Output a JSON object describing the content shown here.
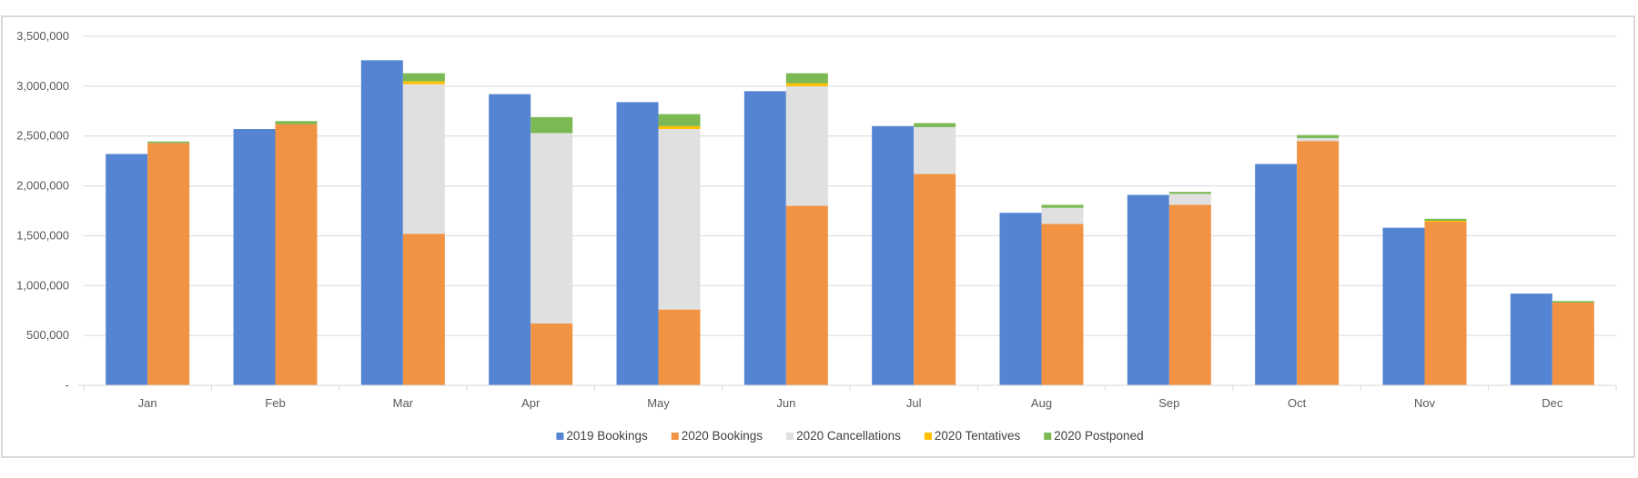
{
  "chart_data": {
    "type": "bar",
    "categories": [
      "Jan",
      "Feb",
      "Mar",
      "Apr",
      "May",
      "Jun",
      "Jul",
      "Aug",
      "Sep",
      "Oct",
      "Nov",
      "Dec"
    ],
    "y_ticks": [
      "-",
      "500,000",
      "1,000,000",
      "1,500,000",
      "2,000,000",
      "2,500,000",
      "3,000,000",
      "3,500,000"
    ],
    "ylim": [
      0,
      3500000
    ],
    "grid": true,
    "legend_position": "bottom",
    "series": [
      {
        "name": "2019 Bookings",
        "color": "#5585d2",
        "stack": "2019",
        "values": [
          2320000,
          2570000,
          3260000,
          2920000,
          2840000,
          2950000,
          2600000,
          1730000,
          1910000,
          2220000,
          1580000,
          920000
        ]
      },
      {
        "name": "2020 Bookings",
        "color": "#f19343",
        "stack": "2020",
        "values": [
          2430000,
          2620000,
          1520000,
          620000,
          760000,
          1800000,
          2120000,
          1620000,
          1810000,
          2450000,
          1640000,
          830000
        ]
      },
      {
        "name": "2020 Cancellations",
        "color": "#e0e0e0",
        "stack": "2020",
        "values": [
          0,
          0,
          1500000,
          1910000,
          1810000,
          1200000,
          470000,
          160000,
          110000,
          30000,
          0,
          0
        ]
      },
      {
        "name": "2020 Tentatives",
        "color": "#ffc000",
        "stack": "2020",
        "values": [
          0,
          0,
          30000,
          0,
          30000,
          30000,
          0,
          0,
          0,
          0,
          10000,
          0
        ]
      },
      {
        "name": "2020 Postponed",
        "color": "#7bb955",
        "stack": "2020",
        "values": [
          15000,
          30000,
          80000,
          160000,
          120000,
          100000,
          40000,
          30000,
          20000,
          30000,
          20000,
          15000
        ]
      }
    ]
  }
}
